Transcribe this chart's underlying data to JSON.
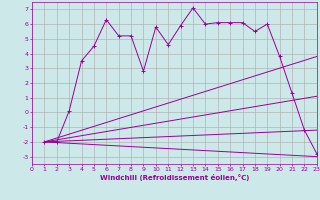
{
  "xlabel": "Windchill (Refroidissement éolien,°C)",
  "bg_color": "#cce8e8",
  "line_color": "#990099",
  "grid_color": "#aaaaaa",
  "xlim": [
    0,
    23
  ],
  "ylim": [
    -3.5,
    7.5
  ],
  "yticks": [
    -3,
    -2,
    -1,
    0,
    1,
    2,
    3,
    4,
    5,
    6,
    7
  ],
  "xticks": [
    0,
    1,
    2,
    3,
    4,
    5,
    6,
    7,
    8,
    9,
    10,
    11,
    12,
    13,
    14,
    15,
    16,
    17,
    18,
    19,
    20,
    21,
    22,
    23
  ],
  "series": [
    [
      1,
      -2,
      2,
      -2,
      3,
      0.1,
      4,
      3.5,
      5,
      4.5,
      6,
      6.3,
      7,
      5.2,
      8,
      5.2,
      9,
      2.8,
      10,
      5.8,
      11,
      4.6,
      12,
      5.9,
      13,
      7.1,
      14,
      6.0,
      15,
      6.1,
      16,
      6.1,
      17,
      6.1,
      18,
      5.5,
      19,
      6.0,
      20,
      3.8,
      21,
      1.3,
      22,
      -1.2,
      23,
      -2.8
    ],
    [
      1,
      -2,
      23,
      3.8
    ],
    [
      1,
      -2,
      23,
      1.1
    ],
    [
      1,
      -2,
      23,
      -1.2
    ],
    [
      1,
      -2,
      23,
      -3.0
    ]
  ]
}
